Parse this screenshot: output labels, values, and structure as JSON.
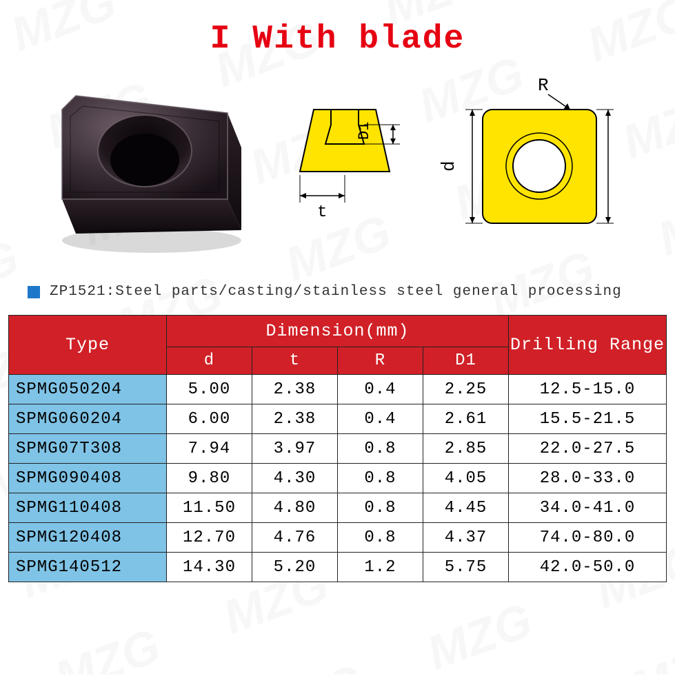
{
  "title": {
    "text": "I With blade",
    "color": "#e60012",
    "fontsize": 48
  },
  "watermark_text": "MZG",
  "note": {
    "bullet_color": "#1f77c9",
    "text": "ZP1521:Steel parts/casting/stainless steel general processing",
    "text_color": "#333333",
    "fontsize": 21
  },
  "diagrams": {
    "side": {
      "fill": "#ffe400",
      "stroke": "#000000",
      "label_D1": "D1",
      "label_t": "t"
    },
    "top": {
      "fill": "#ffe400",
      "stroke": "#000000",
      "label_R": "R",
      "label_d": "d"
    }
  },
  "table": {
    "header": {
      "bg": "#d12027",
      "text_color": "#ffffff",
      "type_label": "Type",
      "dimension_label": "Dimension(mm)",
      "range_label": "Drilling Range",
      "sub": [
        "d",
        "t",
        "R",
        "D1"
      ]
    },
    "type_col_bg": "#7fc3e6",
    "columns_widths_pct": [
      24,
      13,
      13,
      13,
      13,
      24
    ],
    "rows": [
      {
        "type": "SPMG050204",
        "d": "5.00",
        "t": "2.38",
        "R": "0.4",
        "D1": "2.25",
        "range": "12.5-15.0"
      },
      {
        "type": "SPMG060204",
        "d": "6.00",
        "t": "2.38",
        "R": "0.4",
        "D1": "2.61",
        "range": "15.5-21.5"
      },
      {
        "type": "SPMG07T308",
        "d": "7.94",
        "t": "3.97",
        "R": "0.8",
        "D1": "2.85",
        "range": "22.0-27.5"
      },
      {
        "type": "SPMG090408",
        "d": "9.80",
        "t": "4.30",
        "R": "0.8",
        "D1": "4.05",
        "range": "28.0-33.0"
      },
      {
        "type": "SPMG110408",
        "d": "11.50",
        "t": "4.80",
        "R": "0.8",
        "D1": "4.45",
        "range": "34.0-41.0"
      },
      {
        "type": "SPMG120408",
        "d": "12.70",
        "t": "4.76",
        "R": "0.8",
        "D1": "4.37",
        "range": "74.0-80.0"
      },
      {
        "type": "SPMG140512",
        "d": "14.30",
        "t": "5.20",
        "R": "1.2",
        "D1": "5.75",
        "range": "42.0-50.0"
      }
    ]
  }
}
